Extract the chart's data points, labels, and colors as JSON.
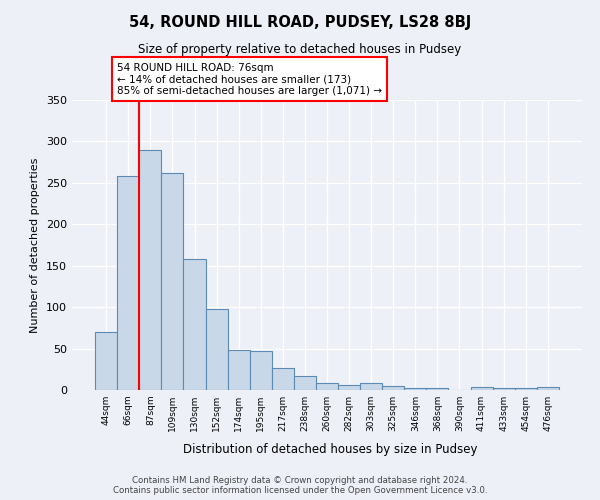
{
  "title": "54, ROUND HILL ROAD, PUDSEY, LS28 8BJ",
  "subtitle": "Size of property relative to detached houses in Pudsey",
  "xlabel": "Distribution of detached houses by size in Pudsey",
  "ylabel": "Number of detached properties",
  "categories": [
    "44sqm",
    "66sqm",
    "87sqm",
    "109sqm",
    "130sqm",
    "152sqm",
    "174sqm",
    "195sqm",
    "217sqm",
    "238sqm",
    "260sqm",
    "282sqm",
    "303sqm",
    "325sqm",
    "346sqm",
    "368sqm",
    "390sqm",
    "411sqm",
    "433sqm",
    "454sqm",
    "476sqm"
  ],
  "values": [
    70,
    258,
    290,
    262,
    158,
    98,
    48,
    47,
    26,
    17,
    9,
    6,
    9,
    5,
    3,
    2,
    0,
    4,
    2,
    2,
    4
  ],
  "bar_color": "#c8d8e8",
  "bar_edge_color": "#5b8ab5",
  "annotation_box_text": "54 ROUND HILL ROAD: 76sqm\n← 14% of detached houses are smaller (173)\n85% of semi-detached houses are larger (1,071) →",
  "annotation_box_color": "white",
  "annotation_box_edge_color": "red",
  "vline_color": "red",
  "vline_x_index": 1.5,
  "footnote": "Contains HM Land Registry data © Crown copyright and database right 2024.\nContains public sector information licensed under the Open Government Licence v3.0.",
  "background_color": "#eef0f8",
  "grid_color": "#ffffff",
  "ylim": [
    0,
    350
  ],
  "yticks": [
    0,
    50,
    100,
    150,
    200,
    250,
    300,
    350
  ]
}
